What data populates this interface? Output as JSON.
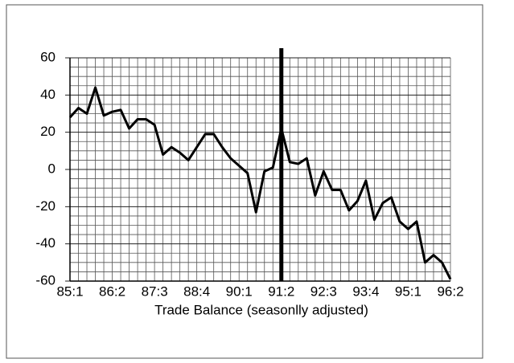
{
  "chart_data": {
    "type": "line",
    "xlabel": "Trade Balance (seasonlly adjusted)",
    "categories": [
      "85:1",
      null,
      null,
      null,
      null,
      "86:2",
      null,
      null,
      null,
      null,
      "87:3",
      null,
      null,
      null,
      null,
      "88:4",
      null,
      null,
      null,
      null,
      "90:1",
      null,
      null,
      null,
      null,
      "91:2",
      null,
      null,
      null,
      null,
      "92:3",
      null,
      null,
      null,
      null,
      "93:4",
      null,
      null,
      null,
      null,
      "95:1",
      null,
      null,
      null,
      null,
      "96:2"
    ],
    "series": [
      {
        "name": null,
        "color": "#000000",
        "values": [
          28,
          33,
          30,
          44,
          29,
          31,
          32,
          22,
          27,
          27,
          24,
          8,
          12,
          9,
          5,
          12,
          19,
          19,
          12,
          6,
          2,
          -2,
          -23,
          -1,
          1,
          22,
          4,
          3,
          6,
          -14,
          -1,
          -11,
          -11,
          -22,
          -17,
          -6,
          -27,
          -18,
          -15,
          -28,
          -32,
          -28,
          -50,
          -46,
          -50,
          -59
        ]
      }
    ],
    "ylim": [
      -60,
      60
    ],
    "yticks": [
      -60,
      -40,
      -20,
      0,
      20,
      40,
      60
    ],
    "minor_yticks": [
      -55,
      -50,
      -45,
      -35,
      -30,
      -25,
      -15,
      -10,
      -5,
      5,
      10,
      15,
      25,
      30,
      35,
      45,
      50,
      55
    ],
    "grid": true,
    "vline_category_index": 25
  }
}
